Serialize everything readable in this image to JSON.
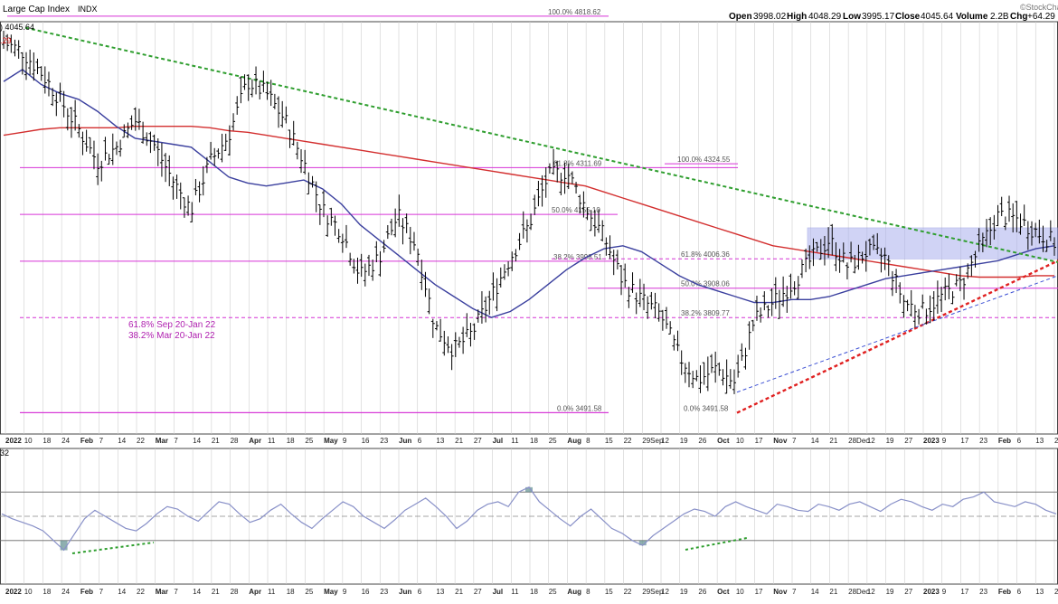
{
  "header": {
    "title": "Large Cap Index",
    "exchange": "INDX",
    "watermark": "©StockCharts",
    "open_label": "Open",
    "open": "3998.02",
    "high_label": "High",
    "high": "4048.29",
    "low_label": "Low",
    "low": "3995.17",
    "close_label": "Close",
    "close": "4045.64",
    "volume_label": "Volume",
    "volume": "2.2B",
    "chg_label": "Chg",
    "chg": "+64.29"
  },
  "legend_fragments": [
    {
      "text": ") 4045.64",
      "color": "#000000"
    },
    {
      "text": ".29",
      "color": "#cc0000"
    },
    {
      "text": "32",
      "color": "#000000"
    }
  ],
  "colors": {
    "price": "#000000",
    "ma_fast": "#3a3f9e",
    "ma_slow": "#d32f2f",
    "fib": "#d633d6",
    "trend_down": "#2e9e2e",
    "trend_up": "#e02020",
    "trend_blue": "#3b4fd4",
    "zone": "#aab0ee",
    "rsi": "#8890c8",
    "rsi_shade": "#5f8f8f",
    "grid": "#cfcfcf",
    "frame": "#444444"
  },
  "chart_data": {
    "type": "ohlc",
    "title": "Large Cap Index",
    "period": "2022-01 to 2023-02",
    "price_axis": {
      "ylim": [
        3420,
        4800
      ]
    },
    "x_ticks": [
      "2022",
      "10",
      "18",
      "24",
      "Feb",
      "7",
      "14",
      "22",
      "Mar",
      "7",
      "14",
      "21",
      "28",
      "Apr",
      "11",
      "18",
      "25",
      "May",
      "9",
      "16",
      "23",
      "Jun",
      "6",
      "13",
      "21",
      "27",
      "Jul",
      "11",
      "18",
      "25",
      "Aug",
      "8",
      "15",
      "22",
      "29Sep",
      "12",
      "19",
      "26",
      "Oct",
      "10",
      "17",
      "Nov",
      "7",
      "14",
      "21",
      "28Dec",
      "12",
      "19",
      "27",
      "2023",
      "9",
      "17",
      "23",
      "Feb",
      "6",
      "13",
      "21"
    ],
    "ohlc_key_points": [
      4730,
      4700,
      4630,
      4540,
      4440,
      4330,
      4380,
      4470,
      4390,
      4270,
      4170,
      4330,
      4420,
      4600,
      4560,
      4470,
      4330,
      4170,
      4100,
      3950,
      4010,
      4150,
      4050,
      3780,
      3700,
      3760,
      3880,
      4010,
      4120,
      4280,
      4300,
      4180,
      4080,
      3930,
      3870,
      3820,
      3680,
      3600,
      3640,
      3590,
      3800,
      3860,
      3920,
      4000,
      4070,
      3980,
      4030,
      4010,
      3860,
      3830,
      3880,
      3920,
      4040,
      4150,
      4140,
      4100,
      4060
    ],
    "ma_fast_points": [
      4600,
      4640,
      4590,
      4560,
      4540,
      4500,
      4450,
      4410,
      4400,
      4390,
      4380,
      4330,
      4280,
      4260,
      4250,
      4260,
      4270,
      4240,
      4190,
      4120,
      4070,
      4020,
      3970,
      3920,
      3880,
      3840,
      3810,
      3830,
      3870,
      3920,
      3970,
      4010,
      4040,
      4050,
      4030,
      3990,
      3950,
      3920,
      3900,
      3880,
      3860,
      3860,
      3870,
      3870,
      3880,
      3900,
      3920,
      3940,
      3950,
      3960,
      3970,
      3980,
      3990,
      4000,
      4020,
      4040,
      4050
    ],
    "ma_slow_points": [
      4420,
      4430,
      4440,
      4445,
      4445,
      4445,
      4445,
      4450,
      4450,
      4450,
      4450,
      4445,
      4435,
      4430,
      4420,
      4410,
      4400,
      4390,
      4380,
      4370,
      4360,
      4350,
      4340,
      4330,
      4320,
      4310,
      4300,
      4290,
      4280,
      4270,
      4260,
      4250,
      4230,
      4210,
      4190,
      4170,
      4150,
      4130,
      4110,
      4090,
      4070,
      4050,
      4040,
      4030,
      4020,
      4010,
      4000,
      3990,
      3980,
      3970,
      3960,
      3950,
      3945,
      3945,
      3945,
      3950,
      3950
    ],
    "fib_levels": [
      {
        "label": "100.0% 4818.62",
        "value": 4818.62,
        "style": "solid"
      },
      {
        "label": "61.8% 4311.69",
        "value": 4311.69,
        "style": "solid"
      },
      {
        "label": "50.0% 4155.10",
        "value": 4155.1,
        "style": "solid"
      },
      {
        "label": "38.2% 3998.51",
        "value": 3998.51,
        "style": "solid"
      },
      {
        "label": "0.0% 3491.58",
        "value": 3491.58,
        "style": "solid"
      },
      {
        "label": "100.0% 4324.55",
        "value": 4324.55,
        "style": "solid"
      },
      {
        "label": "61.8% 4006.36",
        "value": 4006.36,
        "style": "dashed"
      },
      {
        "label": "50.0% 3908.06",
        "value": 3908.06,
        "style": "solid"
      },
      {
        "label": "38.2% 3809.77",
        "value": 3809.77,
        "style": "dashed"
      },
      {
        "label": "0.0% 3491.58",
        "value": 3491.58,
        "style": "solid"
      }
    ],
    "annotations": [
      "61.8% Sep 20-Jan 22",
      "38.2% Mar 20-Jan 22"
    ],
    "rsi": {
      "levels": [
        70,
        50,
        30
      ],
      "values": [
        52,
        48,
        45,
        42,
        38,
        30,
        22,
        35,
        48,
        55,
        50,
        45,
        40,
        38,
        44,
        52,
        58,
        56,
        50,
        46,
        54,
        62,
        60,
        52,
        45,
        48,
        55,
        60,
        52,
        45,
        40,
        48,
        55,
        62,
        58,
        50,
        45,
        40,
        47,
        55,
        60,
        65,
        58,
        50,
        40,
        46,
        55,
        60,
        62,
        58,
        70,
        74,
        62,
        55,
        48,
        42,
        50,
        56,
        48,
        40,
        36,
        30,
        26,
        34,
        40,
        46,
        52,
        56,
        54,
        50,
        58,
        62,
        58,
        55,
        52,
        60,
        58,
        55,
        54,
        60,
        58,
        55,
        60,
        62,
        58,
        54,
        60,
        64,
        62,
        58,
        55,
        60,
        58,
        64,
        66,
        70,
        62,
        60,
        58,
        62,
        60,
        55,
        52
      ]
    }
  }
}
